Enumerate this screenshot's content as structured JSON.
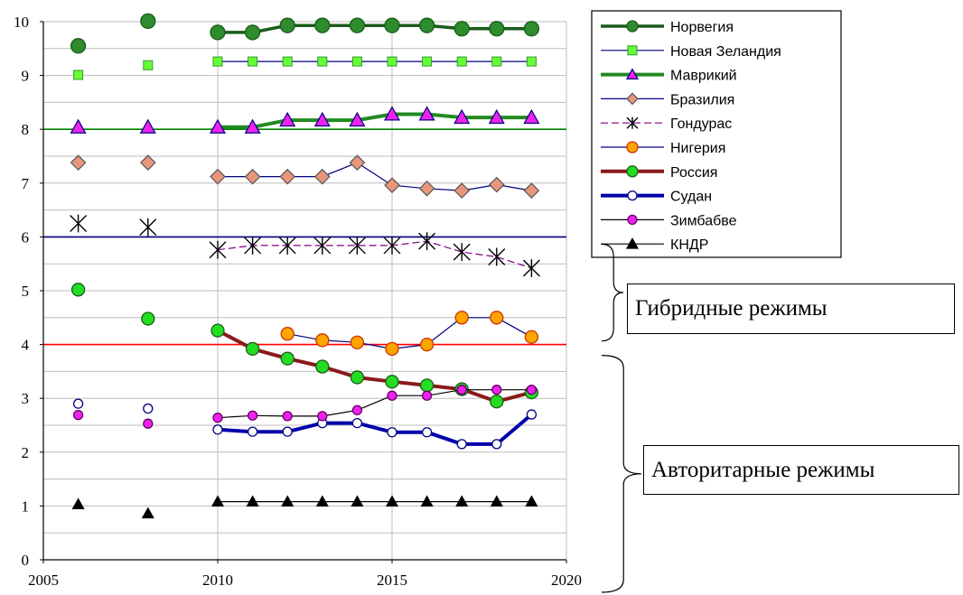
{
  "chart_data": {
    "type": "line",
    "xlim": [
      2005,
      2020
    ],
    "ylim": [
      0,
      10
    ],
    "x_ticks": [
      2005,
      2010,
      2015,
      2020
    ],
    "y_ticks": [
      0,
      1,
      2,
      3,
      4,
      5,
      6,
      7,
      8,
      9,
      10
    ],
    "grid": "horizontal minor (0.5) and vertical major",
    "legend_position": "top-right",
    "reference_lines": [
      {
        "y": 8,
        "color": "#008000"
      },
      {
        "y": 6,
        "color": "#000080"
      },
      {
        "y": 4,
        "color": "#ff0000"
      }
    ],
    "annotations": [
      {
        "text": "Гибридные режимы",
        "y_from": 4,
        "y_to": 6
      },
      {
        "text": "Авторитарные режимы",
        "y_from": 0,
        "y_to": 4
      }
    ],
    "series": [
      {
        "name": "Норвегия",
        "color": "#1a5c1a",
        "line_width": 3.5,
        "dash": "",
        "marker": "circle",
        "marker_fill": "#2e8b2e",
        "marker_stroke": "#1a5c1a",
        "marker_size": 8,
        "points": [
          [
            2006,
            9.55
          ],
          [
            2008,
            10.01
          ],
          [
            2010,
            9.8
          ],
          [
            2011,
            9.8
          ],
          [
            2012,
            9.93
          ],
          [
            2013,
            9.93
          ],
          [
            2014,
            9.93
          ],
          [
            2015,
            9.93
          ],
          [
            2016,
            9.93
          ],
          [
            2017,
            9.87
          ],
          [
            2018,
            9.87
          ],
          [
            2019,
            9.87
          ]
        ]
      },
      {
        "name": "Новая Зеландия",
        "color": "#000080",
        "line_width": 1.2,
        "dash": "",
        "marker": "square",
        "marker_fill": "#66ff33",
        "marker_stroke": "#339933",
        "marker_size": 5,
        "points": [
          [
            2006,
            9.01
          ],
          [
            2008,
            9.19
          ],
          [
            2010,
            9.26
          ],
          [
            2011,
            9.26
          ],
          [
            2012,
            9.26
          ],
          [
            2013,
            9.26
          ],
          [
            2014,
            9.26
          ],
          [
            2015,
            9.26
          ],
          [
            2016,
            9.26
          ],
          [
            2017,
            9.26
          ],
          [
            2018,
            9.26
          ],
          [
            2019,
            9.26
          ]
        ]
      },
      {
        "name": "Маврикий",
        "color": "#228b22",
        "line_width": 4,
        "dash": "",
        "marker": "triangle",
        "marker_fill": "#ee22ee",
        "marker_stroke": "#000080",
        "marker_size": 8,
        "points": [
          [
            2006,
            8.04
          ],
          [
            2008,
            8.04
          ],
          [
            2010,
            8.04
          ],
          [
            2011,
            8.04
          ],
          [
            2012,
            8.17
          ],
          [
            2013,
            8.17
          ],
          [
            2014,
            8.17
          ],
          [
            2015,
            8.28
          ],
          [
            2016,
            8.28
          ],
          [
            2017,
            8.22
          ],
          [
            2018,
            8.22
          ],
          [
            2019,
            8.22
          ]
        ]
      },
      {
        "name": "Бразилия",
        "color": "#000080",
        "line_width": 1.2,
        "dash": "",
        "marker": "diamond",
        "marker_fill": "#e8967a",
        "marker_stroke": "#555555",
        "marker_size": 8,
        "points": [
          [
            2006,
            7.38
          ],
          [
            2008,
            7.38
          ],
          [
            2010,
            7.12
          ],
          [
            2011,
            7.12
          ],
          [
            2012,
            7.12
          ],
          [
            2013,
            7.12
          ],
          [
            2014,
            7.38
          ],
          [
            2015,
            6.96
          ],
          [
            2016,
            6.9
          ],
          [
            2017,
            6.86
          ],
          [
            2018,
            6.97
          ],
          [
            2019,
            6.86
          ]
        ]
      },
      {
        "name": "Гондурас",
        "color": "#800080",
        "line_width": 1.2,
        "dash": "8,4",
        "marker": "star",
        "marker_fill": "none",
        "marker_stroke": "#000000",
        "marker_size": 9,
        "points": [
          [
            2006,
            6.25
          ],
          [
            2008,
            6.18
          ],
          [
            2010,
            5.76
          ],
          [
            2011,
            5.84
          ],
          [
            2012,
            5.84
          ],
          [
            2013,
            5.84
          ],
          [
            2014,
            5.84
          ],
          [
            2015,
            5.84
          ],
          [
            2016,
            5.92
          ],
          [
            2017,
            5.72
          ],
          [
            2018,
            5.63
          ],
          [
            2019,
            5.42
          ]
        ]
      },
      {
        "name": "Нигерия",
        "color": "#000080",
        "line_width": 1.2,
        "dash": "",
        "marker": "circle",
        "marker_fill": "#ffa500",
        "marker_stroke": "#cc3300",
        "marker_size": 7,
        "points": [
          [
            2012,
            4.2
          ],
          [
            2013,
            4.08
          ],
          [
            2014,
            4.04
          ],
          [
            2015,
            3.92
          ],
          [
            2016,
            4.0
          ],
          [
            2017,
            4.5
          ],
          [
            2018,
            4.5
          ],
          [
            2019,
            4.14
          ]
        ]
      },
      {
        "name": "Россия",
        "color": "#8b1a1a",
        "line_width": 4,
        "dash": "",
        "marker": "circle",
        "marker_fill": "#22dd22",
        "marker_stroke": "#1a5c1a",
        "marker_size": 7,
        "points": [
          [
            2006,
            5.02
          ],
          [
            2008,
            4.48
          ],
          [
            2010,
            4.26
          ],
          [
            2011,
            3.92
          ],
          [
            2012,
            3.74
          ],
          [
            2013,
            3.59
          ],
          [
            2014,
            3.39
          ],
          [
            2015,
            3.31
          ],
          [
            2016,
            3.24
          ],
          [
            2017,
            3.17
          ],
          [
            2018,
            2.94
          ],
          [
            2019,
            3.11
          ]
        ]
      },
      {
        "name": "Судан",
        "color": "#0000aa",
        "line_width": 4,
        "dash": "",
        "marker": "circle",
        "marker_fill": "#ffffff",
        "marker_stroke": "#000080",
        "marker_size": 5,
        "points": [
          [
            2006,
            2.9
          ],
          [
            2008,
            2.81
          ],
          [
            2010,
            2.42
          ],
          [
            2011,
            2.38
          ],
          [
            2012,
            2.38
          ],
          [
            2013,
            2.54
          ],
          [
            2014,
            2.54
          ],
          [
            2015,
            2.37
          ],
          [
            2016,
            2.37
          ],
          [
            2017,
            2.15
          ],
          [
            2018,
            2.15
          ],
          [
            2019,
            2.7
          ]
        ]
      },
      {
        "name": "Зимбабве",
        "color": "#000000",
        "line_width": 1.2,
        "dash": "",
        "marker": "circle",
        "marker_fill": "#ee22ee",
        "marker_stroke": "#660066",
        "marker_size": 5,
        "points": [
          [
            2006,
            2.69
          ],
          [
            2008,
            2.53
          ],
          [
            2010,
            2.64
          ],
          [
            2011,
            2.68
          ],
          [
            2012,
            2.67
          ],
          [
            2013,
            2.67
          ],
          [
            2014,
            2.78
          ],
          [
            2015,
            3.05
          ],
          [
            2016,
            3.05
          ],
          [
            2017,
            3.16
          ],
          [
            2018,
            3.16
          ],
          [
            2019,
            3.16
          ]
        ]
      },
      {
        "name": "КНДР",
        "color": "#000000",
        "line_width": 1.2,
        "dash": "",
        "marker": "triangle",
        "marker_fill": "#000000",
        "marker_stroke": "#000000",
        "marker_size": 6,
        "points": [
          [
            2006,
            1.03
          ],
          [
            2008,
            0.86
          ],
          [
            2010,
            1.08
          ],
          [
            2011,
            1.08
          ],
          [
            2012,
            1.08
          ],
          [
            2013,
            1.08
          ],
          [
            2014,
            1.08
          ],
          [
            2015,
            1.08
          ],
          [
            2016,
            1.08
          ],
          [
            2017,
            1.08
          ],
          [
            2018,
            1.08
          ],
          [
            2019,
            1.08
          ]
        ]
      }
    ]
  }
}
